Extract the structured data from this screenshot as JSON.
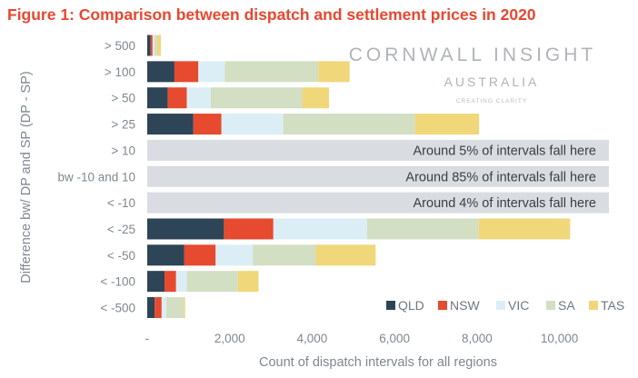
{
  "chart_data": {
    "type": "bar",
    "orientation": "horizontal",
    "stacked": true,
    "title": "Figure 1: Comparison between dispatch and settlement prices in 2020",
    "xlabel": "Count of dispatch intervals for all regions",
    "ylabel": "Difference bw/ DP and SP (DP - SP)",
    "xlim": [
      0,
      11200
    ],
    "xticks": [
      0,
      2000,
      4000,
      6000,
      8000,
      10000
    ],
    "xtick_labels": [
      "-",
      "2,000",
      "4,000",
      "6,000",
      "8,000",
      "10,000"
    ],
    "grid": false,
    "legend_position": "bottom-right",
    "categories": [
      "> 500",
      "> 100",
      "> 50",
      "> 25",
      "> 10",
      "bw -10 and 10",
      "< -10",
      "< -25",
      "< -50",
      "< -100",
      "< -500"
    ],
    "series": [
      {
        "name": "QLD",
        "color": "#2e4457",
        "values": [
          80,
          660,
          500,
          1120,
          null,
          null,
          null,
          1860,
          900,
          420,
          180
        ]
      },
      {
        "name": "NSW",
        "color": "#e64a2f",
        "values": [
          50,
          580,
          460,
          680,
          null,
          null,
          null,
          1200,
          760,
          280,
          170
        ]
      },
      {
        "name": "VIC",
        "color": "#dbeef6",
        "values": [
          40,
          640,
          580,
          1500,
          null,
          null,
          null,
          2270,
          900,
          260,
          110
        ]
      },
      {
        "name": "SA",
        "color": "#d3dfc3",
        "values": [
          70,
          2270,
          2220,
          3200,
          null,
          null,
          null,
          2710,
          1530,
          1240,
          430
        ]
      },
      {
        "name": "TAS",
        "color": "#f0d77a",
        "values": [
          90,
          760,
          650,
          1550,
          null,
          null,
          null,
          2220,
          1450,
          500,
          30
        ]
      }
    ],
    "overflow_rows": [
      {
        "category": "> 10",
        "annotation": "Around 5% of intervals fall here"
      },
      {
        "category": "bw -10 and 10",
        "annotation": "Around 85% of intervals fall here"
      },
      {
        "category": "< -10",
        "annotation": "Around 4% of intervals fall here"
      }
    ],
    "overflow_color": "#d9dde1"
  },
  "logo": {
    "name": "CORNWALL INSIGHT",
    "region": "AUSTRALIA",
    "tagline": "CREATING CLARITY"
  }
}
